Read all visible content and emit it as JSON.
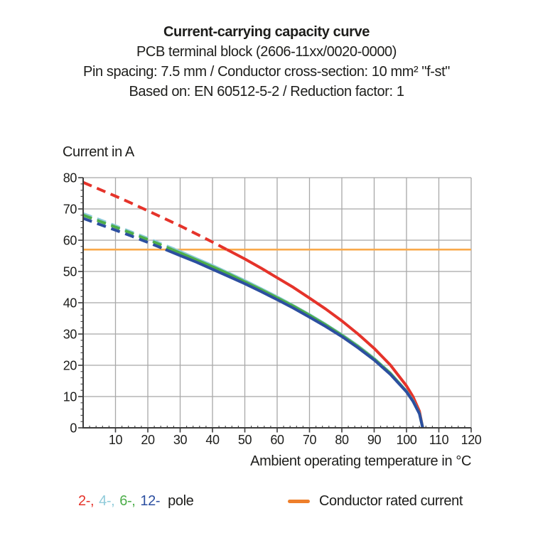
{
  "header": {
    "line1": "Current-carrying capacity curve",
    "line2": "PCB terminal block (2606-11xx/0020-0000)",
    "line3": "Pin spacing: 7.5 mm / Conductor cross-section: 10 mm² \"f-st\"",
    "line4": "Based on: EN 60512-5-2 / Reduction factor: 1"
  },
  "legend": {
    "pole_items": [
      {
        "label": "2-,",
        "color": "#E5332A"
      },
      {
        "label": "4-,",
        "color": "#8FCBDA"
      },
      {
        "label": "6-,",
        "color": "#4DAE4A"
      },
      {
        "label": "12-",
        "color": "#2C4FA0"
      }
    ],
    "pole_suffix": "pole",
    "conductor": {
      "label": "Conductor rated current",
      "swatch_color": "#EE7F2B"
    }
  },
  "chart_data": {
    "type": "line",
    "title": "Current-carrying capacity curve",
    "xlabel": "Ambient operating temperature in °C",
    "ylabel": "Current in A",
    "xlim": [
      0,
      120
    ],
    "ylim": [
      0,
      80
    ],
    "x_ticks": [
      10,
      20,
      30,
      40,
      50,
      60,
      70,
      80,
      90,
      100,
      110,
      120
    ],
    "y_ticks": [
      0,
      10,
      20,
      30,
      40,
      50,
      60,
      70,
      80
    ],
    "minor_tick_step": 2,
    "grid": true,
    "grid_color": "#A8A8A8",
    "axis_color": "#3C3C3C",
    "text_color": "#1D1D1B",
    "reference_line": {
      "label": "Conductor rated current",
      "value": 57,
      "color": "#F9A94B"
    },
    "style_rule": "curves are dashed above the conductor rated current (57 A) and solid below it",
    "x": [
      0,
      5,
      10,
      15,
      20,
      25,
      30,
      35,
      40,
      45,
      50,
      55,
      60,
      65,
      70,
      75,
      80,
      85,
      90,
      95,
      100,
      102,
      104,
      105
    ],
    "series": [
      {
        "name": "2-pole",
        "color": "#E5332A",
        "values": [
          78.5,
          76.3,
          74.1,
          71.8,
          69.4,
          67.0,
          64.6,
          62.0,
          59.4,
          56.7,
          54.0,
          51.1,
          48.0,
          44.9,
          41.5,
          38.0,
          34.2,
          30.0,
          25.4,
          20.1,
          13.4,
          10.0,
          5.3,
          0
        ]
      },
      {
        "name": "4-pole",
        "color": "#8FCBDA",
        "values": [
          68.5,
          66.6,
          64.6,
          62.6,
          60.6,
          58.5,
          56.4,
          54.1,
          51.9,
          49.5,
          47.1,
          44.5,
          41.9,
          39.1,
          36.2,
          33.1,
          29.8,
          26.2,
          22.2,
          17.5,
          11.7,
          8.7,
          4.6,
          0
        ]
      },
      {
        "name": "6-pole",
        "color": "#4DAE4A",
        "values": [
          68.0,
          66.1,
          64.2,
          62.2,
          60.2,
          58.1,
          55.9,
          53.7,
          51.5,
          49.2,
          46.7,
          44.2,
          41.6,
          38.9,
          36.0,
          32.9,
          29.6,
          26.0,
          22.0,
          17.4,
          11.6,
          8.6,
          4.6,
          0
        ]
      },
      {
        "name": "12-pole",
        "color": "#2C4FA0",
        "values": [
          67.0,
          65.1,
          63.2,
          61.3,
          59.3,
          57.2,
          55.1,
          53.0,
          50.7,
          48.4,
          46.1,
          43.6,
          41.0,
          38.3,
          35.4,
          32.4,
          29.2,
          25.6,
          21.7,
          17.1,
          11.5,
          8.5,
          4.5,
          0
        ]
      }
    ]
  }
}
